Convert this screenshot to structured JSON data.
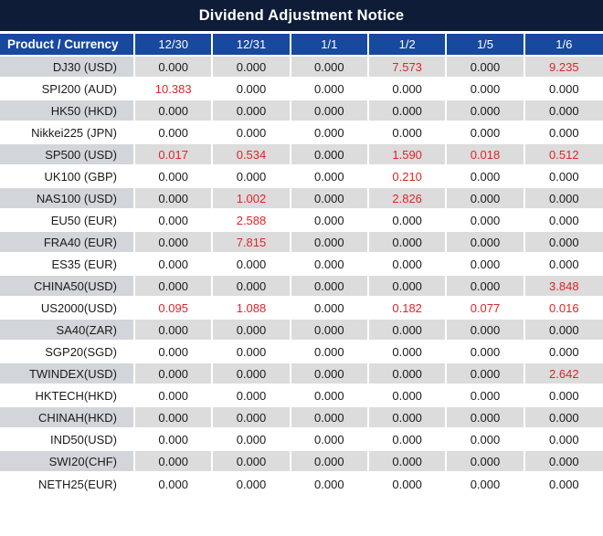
{
  "chart_data": {
    "type": "table",
    "title": "Dividend Adjustment Notice",
    "product_column_header": "Product / Currency",
    "date_column_headers": [
      "12/30",
      "12/31",
      "1/1",
      "1/2",
      "1/5",
      "1/6"
    ],
    "rows": [
      {
        "product": "DJ30 (USD)",
        "values": [
          "0.000",
          "0.000",
          "0.000",
          "7.573",
          "0.000",
          "9.235"
        ]
      },
      {
        "product": "SPI200 (AUD)",
        "values": [
          "10.383",
          "0.000",
          "0.000",
          "0.000",
          "0.000",
          "0.000"
        ]
      },
      {
        "product": "HK50 (HKD)",
        "values": [
          "0.000",
          "0.000",
          "0.000",
          "0.000",
          "0.000",
          "0.000"
        ]
      },
      {
        "product": "Nikkei225 (JPN)",
        "values": [
          "0.000",
          "0.000",
          "0.000",
          "0.000",
          "0.000",
          "0.000"
        ]
      },
      {
        "product": "SP500 (USD)",
        "values": [
          "0.017",
          "0.534",
          "0.000",
          "1.590",
          "0.018",
          "0.512"
        ]
      },
      {
        "product": "UK100 (GBP)",
        "values": [
          "0.000",
          "0.000",
          "0.000",
          "0.210",
          "0.000",
          "0.000"
        ]
      },
      {
        "product": "NAS100 (USD)",
        "values": [
          "0.000",
          "1.002",
          "0.000",
          "2.826",
          "0.000",
          "0.000"
        ]
      },
      {
        "product": "EU50 (EUR)",
        "values": [
          "0.000",
          "2.588",
          "0.000",
          "0.000",
          "0.000",
          "0.000"
        ]
      },
      {
        "product": "FRA40 (EUR)",
        "values": [
          "0.000",
          "7.815",
          "0.000",
          "0.000",
          "0.000",
          "0.000"
        ]
      },
      {
        "product": "ES35 (EUR)",
        "values": [
          "0.000",
          "0.000",
          "0.000",
          "0.000",
          "0.000",
          "0.000"
        ]
      },
      {
        "product": "CHINA50(USD)",
        "values": [
          "0.000",
          "0.000",
          "0.000",
          "0.000",
          "0.000",
          "3.848"
        ]
      },
      {
        "product": "US2000(USD)",
        "values": [
          "0.095",
          "1.088",
          "0.000",
          "0.182",
          "0.077",
          "0.016"
        ]
      },
      {
        "product": "SA40(ZAR)",
        "values": [
          "0.000",
          "0.000",
          "0.000",
          "0.000",
          "0.000",
          "0.000"
        ]
      },
      {
        "product": "SGP20(SGD)",
        "values": [
          "0.000",
          "0.000",
          "0.000",
          "0.000",
          "0.000",
          "0.000"
        ]
      },
      {
        "product": "TWINDEX(USD)",
        "values": [
          "0.000",
          "0.000",
          "0.000",
          "0.000",
          "0.000",
          "2.642"
        ]
      },
      {
        "product": "HKTECH(HKD)",
        "values": [
          "0.000",
          "0.000",
          "0.000",
          "0.000",
          "0.000",
          "0.000"
        ]
      },
      {
        "product": "CHINAH(HKD)",
        "values": [
          "0.000",
          "0.000",
          "0.000",
          "0.000",
          "0.000",
          "0.000"
        ]
      },
      {
        "product": "IND50(USD)",
        "values": [
          "0.000",
          "0.000",
          "0.000",
          "0.000",
          "0.000",
          "0.000"
        ]
      },
      {
        "product": "SWI20(CHF)",
        "values": [
          "0.000",
          "0.000",
          "0.000",
          "0.000",
          "0.000",
          "0.000"
        ]
      },
      {
        "product": "NETH25(EUR)",
        "values": [
          "0.000",
          "0.000",
          "0.000",
          "0.000",
          "0.000",
          "0.000"
        ]
      }
    ],
    "layout_hints": {
      "shaded_rows": "even-indexed rows (0,2,4,...) are gray, odd-indexed rows white",
      "nonzero_values_highlighted": true
    }
  },
  "colors": {
    "title_background": "#0e1c38",
    "header_background": "#17499e",
    "header_text": "#ffffff",
    "row_gray": "#dcdcdc",
    "product_cell_gray": "#d2d6db",
    "row_white": "#ffffff",
    "value_text": "#1a1a1a",
    "nonzero_value_text": "#e02428",
    "grid_separator": "#ffffff"
  }
}
